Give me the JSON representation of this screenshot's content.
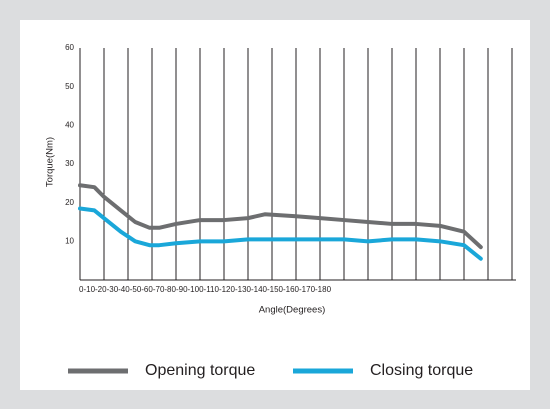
{
  "chart_data": {
    "type": "line",
    "y_label": "Torque(Nm)",
    "x_label": "Angle(Degrees)",
    "x_tick_text": "0-10-20-30-40-50-60-70-80-90-100-110-120-130-140-150-160-170-180",
    "x": [
      0,
      6,
      10,
      17,
      23,
      29,
      33,
      40,
      50,
      60,
      70,
      77,
      90,
      100,
      110,
      120,
      130,
      140,
      150,
      160,
      167
    ],
    "series": [
      {
        "name": "Opening torque",
        "color": "#6d6e70",
        "values": [
          24.5,
          24,
          21.5,
          18,
          15,
          13.5,
          13.5,
          14.5,
          15.5,
          15.5,
          16,
          17,
          16.5,
          16,
          15.5,
          15,
          14.5,
          14.5,
          14,
          12.5,
          8.5
        ]
      },
      {
        "name": "Closing torque",
        "color": "#1aa7d9",
        "values": [
          18.5,
          18,
          16,
          12.5,
          10,
          9,
          9,
          9.5,
          10,
          10,
          10.5,
          10.5,
          10.5,
          10.5,
          10.5,
          10,
          10.5,
          10.5,
          10,
          9,
          5.5
        ]
      }
    ],
    "xlim": [
      0,
      180
    ],
    "xticks": [
      0,
      10,
      20,
      30,
      40,
      50,
      60,
      70,
      80,
      90,
      100,
      110,
      120,
      130,
      140,
      150,
      160,
      170,
      180
    ],
    "ylim": [
      0,
      60
    ],
    "yticks": [
      10,
      20,
      30,
      40,
      50,
      60
    ],
    "grid": true,
    "legend": "bottom"
  }
}
